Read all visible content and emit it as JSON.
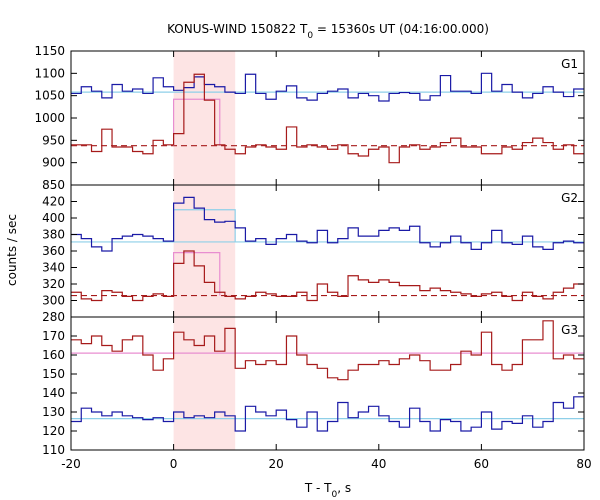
{
  "chart_data": {
    "type": "line",
    "title": {
      "prefix": "KONUS-WIND 150822 T",
      "sub": "0",
      "suffix": " = 15360s UT (04:16:00.000)"
    },
    "xlabel": {
      "main": "T - T",
      "sub": "0",
      "suffix": ", s"
    },
    "ylabel": "counts / sec",
    "xlim": [
      -20,
      80
    ],
    "xticks": [
      "-20",
      "0",
      "20",
      "40",
      "60",
      "80"
    ],
    "highlight_interval": [
      0,
      12
    ],
    "highlight_color": "#fde4e4",
    "panels": [
      {
        "label": "G1",
        "ylim": [
          850,
          1150
        ],
        "yticks": [
          "850",
          "900",
          "950",
          "1000",
          "1050",
          "1100",
          "1150"
        ],
        "series": [
          {
            "color": "#1a1aa6",
            "edges": [
              -20,
              -18,
              -16,
              -14,
              -12,
              -10,
              -8,
              -6,
              -4,
              -2,
              0,
              2,
              4,
              6,
              8,
              10,
              12,
              14,
              16,
              18,
              20,
              22,
              24,
              26,
              28,
              30,
              32,
              34,
              36,
              38,
              40,
              42,
              44,
              46,
              48,
              50,
              52,
              54,
              56,
              58,
              60,
              62,
              64,
              66,
              68,
              70,
              72,
              74,
              76,
              78,
              80
            ],
            "values": [
              1055,
              1070,
              1060,
              1045,
              1075,
              1060,
              1065,
              1055,
              1090,
              1070,
              1062,
              1068,
              1092,
              1075,
              1070,
              1058,
              1055,
              1098,
              1055,
              1042,
              1060,
              1072,
              1045,
              1040,
              1055,
              1060,
              1065,
              1045,
              1055,
              1050,
              1038,
              1055,
              1057,
              1055,
              1040,
              1050,
              1095,
              1060,
              1060,
              1055,
              1100,
              1060,
              1075,
              1058,
              1045,
              1055,
              1070,
              1058,
              1048,
              1065
            ]
          },
          {
            "color": "#a61a1a",
            "edges": [
              -20,
              -18,
              -16,
              -14,
              -12,
              -10,
              -8,
              -6,
              -4,
              -2,
              0,
              2,
              4,
              6,
              8,
              10,
              12,
              14,
              16,
              18,
              20,
              22,
              24,
              26,
              28,
              30,
              32,
              34,
              36,
              38,
              40,
              42,
              44,
              46,
              48,
              50,
              52,
              54,
              56,
              58,
              60,
              62,
              64,
              66,
              68,
              70,
              72,
              74,
              76,
              78,
              80
            ],
            "values": [
              940,
              940,
              925,
              975,
              935,
              935,
              925,
              920,
              950,
              940,
              965,
              1080,
              1098,
              1040,
              940,
              930,
              920,
              935,
              940,
              935,
              930,
              980,
              935,
              940,
              935,
              930,
              940,
              920,
              915,
              930,
              935,
              900,
              935,
              940,
              930,
              935,
              945,
              955,
              935,
              935,
              920,
              920,
              935,
              930,
              945,
              955,
              945,
              930,
              940,
              920
            ]
          }
        ],
        "fits": [
          {
            "color": "#8ecfe8",
            "dashed": false,
            "values": [
              1058,
              1058
            ]
          },
          {
            "color": "#a61a1a",
            "dashed": true,
            "values": [
              938,
              938
            ]
          }
        ],
        "peak_boxes": [
          {
            "color": "#e88ed0",
            "x_range": [
              0,
              9
            ],
            "level": 1042,
            "baseline": 938
          }
        ]
      },
      {
        "label": "G2",
        "ylim": [
          280,
          440
        ],
        "yticks": [
          "280",
          "300",
          "320",
          "340",
          "360",
          "380",
          "400",
          "420"
        ],
        "series": [
          {
            "color": "#1a1aa6",
            "edges": [
              -20,
              -18,
              -16,
              -14,
              -12,
              -10,
              -8,
              -6,
              -4,
              -2,
              0,
              2,
              4,
              6,
              8,
              10,
              12,
              14,
              16,
              18,
              20,
              22,
              24,
              26,
              28,
              30,
              32,
              34,
              36,
              38,
              40,
              42,
              44,
              46,
              48,
              50,
              52,
              54,
              56,
              58,
              60,
              62,
              64,
              66,
              68,
              70,
              72,
              74,
              76,
              78,
              80
            ],
            "values": [
              380,
              375,
              365,
              360,
              375,
              378,
              380,
              378,
              375,
              372,
              418,
              425,
              412,
              398,
              395,
              396,
              388,
              372,
              375,
              368,
              375,
              380,
              372,
              370,
              385,
              370,
              375,
              388,
              378,
              378,
              385,
              388,
              385,
              390,
              370,
              365,
              370,
              378,
              370,
              362,
              370,
              385,
              370,
              368,
              378,
              365,
              362,
              370,
              372,
              370
            ]
          },
          {
            "color": "#a61a1a",
            "edges": [
              -20,
              -18,
              -16,
              -14,
              -12,
              -10,
              -8,
              -6,
              -4,
              -2,
              0,
              2,
              4,
              6,
              8,
              10,
              12,
              14,
              16,
              18,
              20,
              22,
              24,
              26,
              28,
              30,
              32,
              34,
              36,
              38,
              40,
              42,
              44,
              46,
              48,
              50,
              52,
              54,
              56,
              58,
              60,
              62,
              64,
              66,
              68,
              70,
              72,
              74,
              76,
              78,
              80
            ],
            "values": [
              310,
              302,
              300,
              312,
              310,
              305,
              300,
              305,
              308,
              305,
              345,
              360,
              342,
              322,
              310,
              305,
              302,
              305,
              310,
              308,
              305,
              305,
              310,
              300,
              320,
              310,
              305,
              330,
              325,
              322,
              325,
              322,
              318,
              318,
              312,
              315,
              312,
              310,
              308,
              305,
              308,
              310,
              305,
              300,
              310,
              305,
              302,
              310,
              315,
              320
            ]
          }
        ],
        "fits": [
          {
            "color": "#8ecfe8",
            "dashed": false,
            "values": [
              371,
              371
            ]
          },
          {
            "color": "#a61a1a",
            "dashed": true,
            "values": [
              306,
              306
            ]
          }
        ],
        "peak_boxes": [
          {
            "color": "#8ecfe8",
            "x_range": [
              0,
              12
            ],
            "level": 410,
            "baseline": 371
          },
          {
            "color": "#e88ed0",
            "x_range": [
              0,
              9
            ],
            "level": 358,
            "baseline": 306
          }
        ]
      },
      {
        "label": "G3",
        "ylim": [
          110,
          180
        ],
        "yticks": [
          "110",
          "120",
          "130",
          "140",
          "150",
          "160",
          "170",
          "180"
        ],
        "series": [
          {
            "color": "#a61a1a",
            "edges": [
              -20,
              -18,
              -16,
              -14,
              -12,
              -10,
              -8,
              -6,
              -4,
              -2,
              0,
              2,
              4,
              6,
              8,
              10,
              12,
              14,
              16,
              18,
              20,
              22,
              24,
              26,
              28,
              30,
              32,
              34,
              36,
              38,
              40,
              42,
              44,
              46,
              48,
              50,
              52,
              54,
              56,
              58,
              60,
              62,
              64,
              66,
              68,
              70,
              72,
              74,
              76,
              78,
              80
            ],
            "values": [
              168,
              166,
              170,
              165,
              162,
              168,
              170,
              160,
              152,
              158,
              172,
              168,
              165,
              170,
              162,
              174,
              153,
              157,
              155,
              157,
              155,
              170,
              160,
              155,
              153,
              148,
              147,
              152,
              155,
              155,
              157,
              155,
              158,
              160,
              157,
              152,
              152,
              155,
              162,
              160,
              172,
              155,
              152,
              155,
              168,
              168,
              178,
              158,
              160,
              158
            ]
          },
          {
            "color": "#1a1aa6",
            "edges": [
              -20,
              -18,
              -16,
              -14,
              -12,
              -10,
              -8,
              -6,
              -4,
              -2,
              0,
              2,
              4,
              6,
              8,
              10,
              12,
              14,
              16,
              18,
              20,
              22,
              24,
              26,
              28,
              30,
              32,
              34,
              36,
              38,
              40,
              42,
              44,
              46,
              48,
              50,
              52,
              54,
              56,
              58,
              60,
              62,
              64,
              66,
              68,
              70,
              72,
              74,
              76,
              78,
              80
            ],
            "values": [
              125,
              132,
              130,
              128,
              130,
              128,
              127,
              126,
              127,
              125,
              130,
              127,
              128,
              127,
              130,
              128,
              120,
              133,
              130,
              128,
              131,
              126,
              122,
              130,
              120,
              125,
              135,
              127,
              130,
              133,
              128,
              125,
              122,
              132,
              125,
              120,
              126,
              125,
              120,
              122,
              130,
              121,
              125,
              124,
              128,
              122,
              125,
              135,
              132,
              138
            ]
          }
        ],
        "fits": [
          {
            "color": "#e88ed0",
            "dashed": false,
            "values": [
              161,
              161
            ]
          },
          {
            "color": "#8ecfe8",
            "dashed": false,
            "values": [
              126.5,
              126.5
            ]
          }
        ],
        "peak_boxes": []
      }
    ]
  }
}
